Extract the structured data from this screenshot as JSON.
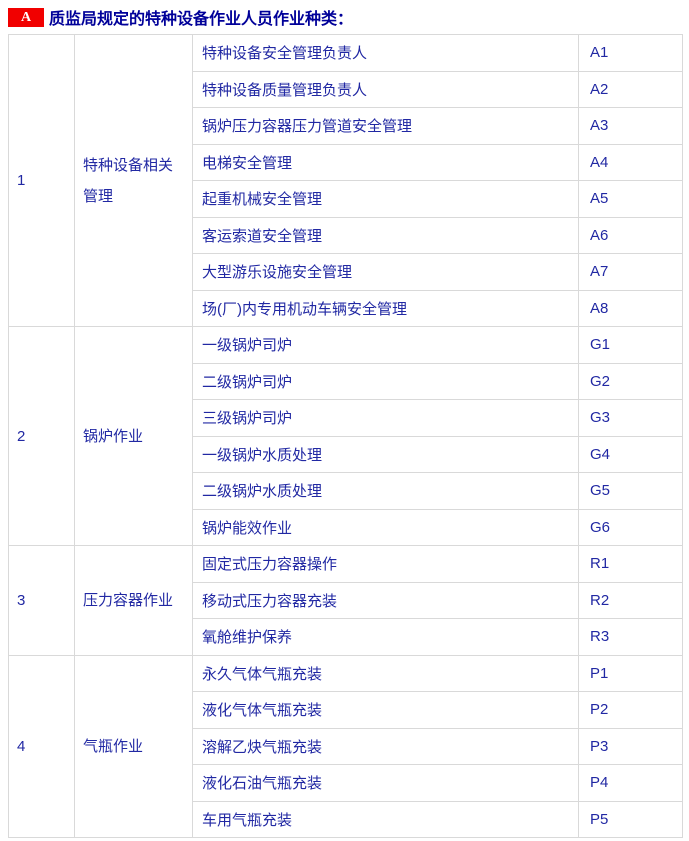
{
  "header": {
    "badge": "A",
    "title": "质监局规定的特种设备作业人员作业种类："
  },
  "colors": {
    "accent_red": "#f10000",
    "title_blue": "#000099",
    "cell_blue": "#2128a3",
    "border_gray": "#d9d9d9"
  },
  "table": {
    "sections": [
      {
        "num": "1",
        "category": "特种设备相关管理",
        "items": [
          {
            "name": "特种设备安全管理负责人",
            "code": "A1"
          },
          {
            "name": "特种设备质量管理负责人",
            "code": "A2"
          },
          {
            "name": "锅炉压力容器压力管道安全管理",
            "code": "A3"
          },
          {
            "name": "电梯安全管理",
            "code": "A4"
          },
          {
            "name": "起重机械安全管理",
            "code": "A5"
          },
          {
            "name": "客运索道安全管理",
            "code": "A6"
          },
          {
            "name": "大型游乐设施安全管理",
            "code": "A7"
          },
          {
            "name": "场(厂)内专用机动车辆安全管理",
            "code": "A8"
          }
        ]
      },
      {
        "num": "2",
        "category": "锅炉作业",
        "items": [
          {
            "name": "一级锅炉司炉",
            "code": "G1"
          },
          {
            "name": "二级锅炉司炉",
            "code": "G2"
          },
          {
            "name": "三级锅炉司炉",
            "code": "G3"
          },
          {
            "name": "一级锅炉水质处理",
            "code": "G4"
          },
          {
            "name": "二级锅炉水质处理",
            "code": "G5"
          },
          {
            "name": "锅炉能效作业",
            "code": "G6"
          }
        ]
      },
      {
        "num": "3",
        "category": "压力容器作业",
        "items": [
          {
            "name": "固定式压力容器操作",
            "code": "R1"
          },
          {
            "name": "移动式压力容器充装",
            "code": "R2"
          },
          {
            "name": "氧舱维护保养",
            "code": "R3"
          }
        ]
      },
      {
        "num": "4",
        "category": "气瓶作业",
        "items": [
          {
            "name": "永久气体气瓶充装",
            "code": "P1"
          },
          {
            "name": "液化气体气瓶充装",
            "code": "P2"
          },
          {
            "name": "溶解乙炔气瓶充装",
            "code": "P3"
          },
          {
            "name": "液化石油气瓶充装",
            "code": "P4"
          },
          {
            "name": "车用气瓶充装",
            "code": "P5"
          }
        ]
      }
    ]
  }
}
